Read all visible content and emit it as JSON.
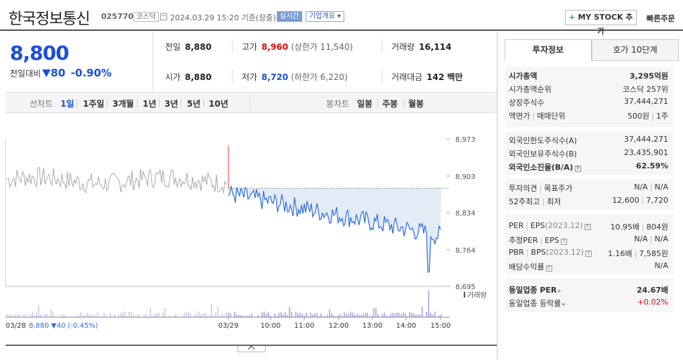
{
  "header": {
    "title": "한국정보통신",
    "code": "025770",
    "market": "코스닥",
    "time": "2024.03.29 15:20 기준(장중)",
    "realtime": "실시간",
    "overview": "기업개요",
    "mystock": "MY STOCK 추가",
    "mystock_plus": "+",
    "fast_order": "빠른주문"
  },
  "price": {
    "current": "8,800",
    "diff_label": "전일대비",
    "diff": "80",
    "diff_pct": "-0.90%"
  },
  "stats": {
    "prev_label": "전일",
    "prev": "8,880",
    "high_label": "고가",
    "high": "8,960",
    "upper": "(상한가 11,540)",
    "volume_label": "거래량",
    "volume": "16,114",
    "open_label": "시가",
    "open": "8,880",
    "low_label": "저가",
    "low": "8,720",
    "lower": "(하한가 6,220)",
    "amount_label": "거래대금",
    "amount": "142 백만"
  },
  "toolbar": {
    "line_label": "선차트",
    "line_items": [
      "1일",
      "1주일",
      "3개월",
      "1년",
      "3년",
      "5년",
      "10년"
    ],
    "candle_label": "봉차트",
    "candle_items": [
      "일봉",
      "주봉",
      "월봉"
    ]
  },
  "chart_data": {
    "type": "line",
    "y_ticks": [
      "8,973",
      "8,903",
      "8,834",
      "8,764",
      "8,695"
    ],
    "ylim": [
      8695,
      8973
    ],
    "x_ticks": [
      "03/29",
      "10:00",
      "11:00",
      "12:00",
      "13:00",
      "14:00",
      "15:00"
    ],
    "prev_day_label": "03/28",
    "prev_day_summary": "8,880 ▼40 (-0.45%)",
    "volume_label": "거래량",
    "base_price": 8880,
    "colors": {
      "up": "#e23b3b",
      "down": "#2f6fd6",
      "prev": "#aaaaaa",
      "fill": "#e3ebf7"
    }
  },
  "panel": {
    "tab_invest": "투자정보",
    "tab_hoga": "호가 10단계",
    "market_cap_label": "시가총액",
    "market_cap": "3,295억원",
    "cap_rank_label": "시가총액순위",
    "cap_rank": "코스닥 257위",
    "shares_label": "상장주식수",
    "shares": "37,444,271",
    "par_label": "액면가",
    "unit_label": "매매단위",
    "par": "500원",
    "unit": "1주",
    "foreign_limit_label": "외국인한도주식수(A)",
    "foreign_limit": "37,444,271",
    "foreign_hold_label": "외국인보유주식수(B)",
    "foreign_hold": "23,435,901",
    "foreign_ratio_label": "외국인소진율(B/A)",
    "foreign_ratio": "62.59%",
    "opinion_label": "투자의견",
    "target_label": "목표주가",
    "opinion": "N/A",
    "target": "N/A",
    "w52_high_label": "52주최고",
    "w52_low_label": "최저",
    "w52_high": "12,600",
    "w52_low": "7,720",
    "per_label": "PER",
    "eps_label": "EPS",
    "eps_year": "(2023.12)",
    "per": "10.95배",
    "eps": "804원",
    "est_per_label": "추정PER",
    "est_eps_label": "EPS",
    "est_per": "N/A",
    "est_eps": "N/A",
    "pbr_label": "PBR",
    "bps_label": "BPS",
    "bps_year": "(2023.12)",
    "pbr": "1.16배",
    "bps": "7,585원",
    "div_label": "배당수익률",
    "div": "N/A",
    "ind_per_label": "동일업종 PER",
    "ind_per": "24.67배",
    "ind_rate_label": "동일업종 등락률",
    "ind_rate": "+0.02%",
    "q": "?"
  }
}
